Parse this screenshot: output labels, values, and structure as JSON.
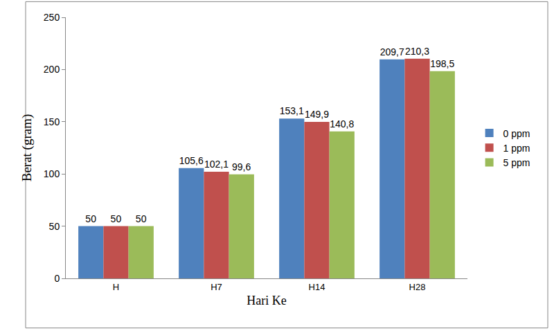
{
  "chart_data": {
    "type": "bar",
    "x_label": "Hari Ke",
    "y_label": "Berat (gram)",
    "categories": [
      "H",
      "H7",
      "H14",
      "H28"
    ],
    "series": [
      {
        "name": "0 ppm",
        "color": "#4f81bd",
        "values": [
          50,
          105.6,
          153.1,
          209.7
        ],
        "value_labels": [
          "50",
          "105,6",
          "153,1",
          "209,7"
        ]
      },
      {
        "name": "1 ppm",
        "color": "#c0504d",
        "values": [
          50,
          102.1,
          149.9,
          210.3
        ],
        "value_labels": [
          "50",
          "102,1",
          "149,9",
          "210,3"
        ]
      },
      {
        "name": "5 ppm",
        "color": "#9bbb59",
        "values": [
          50,
          99.6,
          140.8,
          198.5
        ],
        "value_labels": [
          "50",
          "99,6",
          "140,8",
          "198,5"
        ]
      }
    ],
    "ylim": [
      0,
      250
    ],
    "yticks": [
      0,
      50,
      100,
      150,
      200,
      250
    ],
    "grid": false,
    "legend": "right",
    "data_labels": true
  }
}
